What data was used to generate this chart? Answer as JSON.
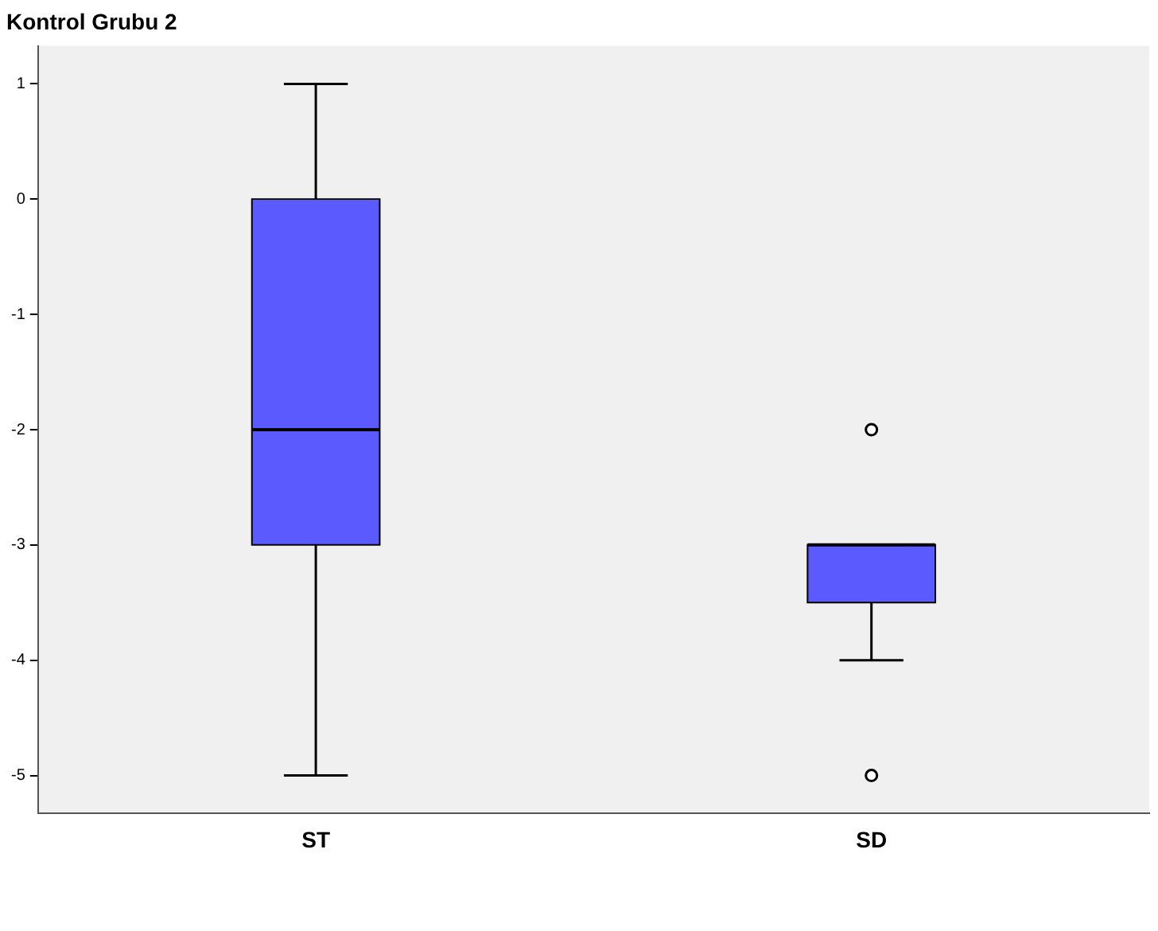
{
  "chart_data": {
    "type": "box",
    "title": "Kontrol Grubu 2",
    "categories": [
      "ST",
      "SD"
    ],
    "color": "#5a5aff",
    "boxes": [
      {
        "low": -5,
        "q1": -3,
        "median": -2,
        "q3": 0,
        "high": 1
      },
      {
        "low": -4,
        "q1": -3.5,
        "median": -3,
        "q3": -3,
        "high": -3,
        "outliers": [
          -2,
          -5
        ]
      }
    ],
    "ylim": [
      -5.33,
      1.33
    ],
    "yticks": [
      -5,
      -4,
      -3,
      -2,
      -1,
      0,
      1
    ],
    "grid": false,
    "legend": false
  }
}
